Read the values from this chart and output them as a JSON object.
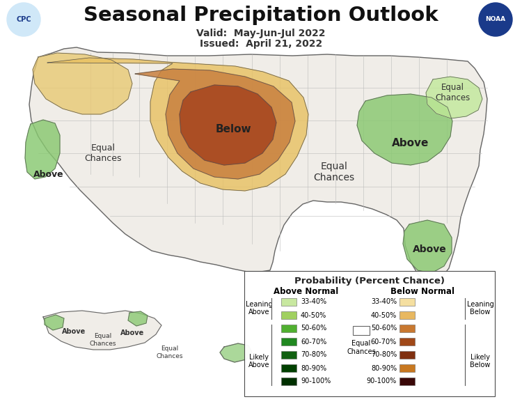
{
  "title": "Seasonal Precipitation Outlook",
  "valid_text": "Valid:  May-Jun-Jul 2022",
  "issued_text": "Issued:  April 21, 2022",
  "background_color": "#ffffff",
  "land_color": "#f0ede8",
  "legend_title": "Probability (Percent Chance)",
  "above_normal_label": "Above Normal",
  "below_normal_label": "Below Normal",
  "above_colors_legend": [
    "#c8e8a0",
    "#a0d060",
    "#50b030",
    "#208820",
    "#106010",
    "#004000",
    "#003000"
  ],
  "below_colors_legend": [
    "#f5dfa0",
    "#e8b860",
    "#c87830",
    "#a04818",
    "#803010",
    "#c87820",
    "#3a0808"
  ],
  "pct_labels": [
    "33-40%",
    "40-50%",
    "50-60%",
    "60-70%",
    "70-80%",
    "80-90%",
    "90-100%"
  ]
}
